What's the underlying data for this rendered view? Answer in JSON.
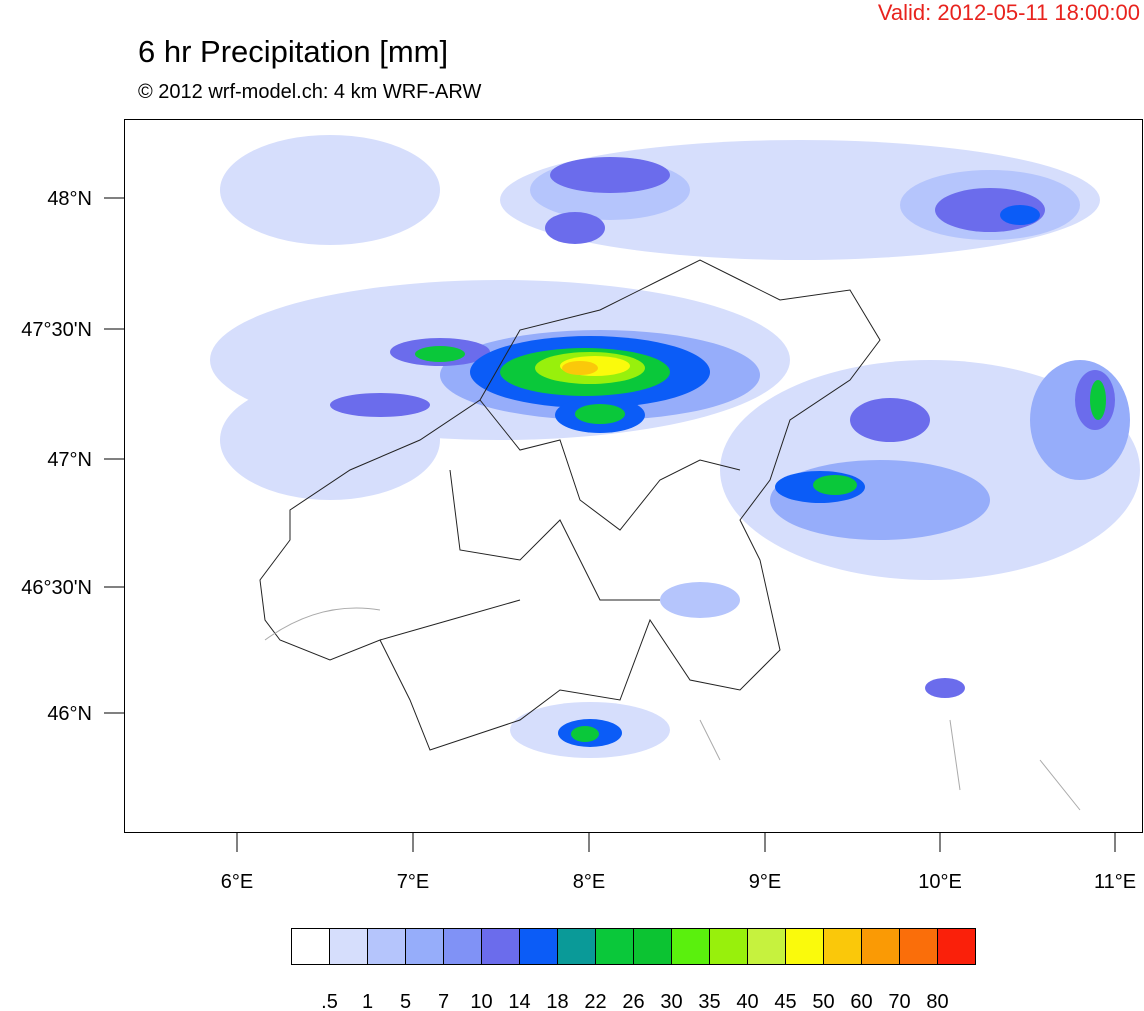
{
  "map": {
    "valid": "Valid: 2012-05-11 18:00:00",
    "title": "6 hr Precipitation [mm]",
    "subtitle": "© 2012 wrf-model.ch: 4 km WRF-ARW",
    "lat_labels": [
      "48°N",
      "47°30'N",
      "47°N",
      "46°30'N",
      "46°N"
    ],
    "lon_labels": [
      "6°E",
      "7°E",
      "8°E",
      "9°E",
      "10°E",
      "11°E"
    ],
    "legend": {
      "labels": [
        ".5",
        "1",
        "5",
        "7",
        "10",
        "14",
        "18",
        "22",
        "26",
        "30",
        "35",
        "40",
        "45",
        "50",
        "60",
        "70",
        "80"
      ],
      "colors": [
        "#ffffff",
        "#d6defc",
        "#b5c5fc",
        "#96adfa",
        "#8092f6",
        "#6b6cec",
        "#0b5cf7",
        "#0a9a98",
        "#0ac83a",
        "#0cc332",
        "#5af00d",
        "#98f00c",
        "#c6f23e",
        "#fafa0c",
        "#fac80a",
        "#fa9a05",
        "#fa6e0a",
        "#fa200a"
      ]
    }
  }
}
